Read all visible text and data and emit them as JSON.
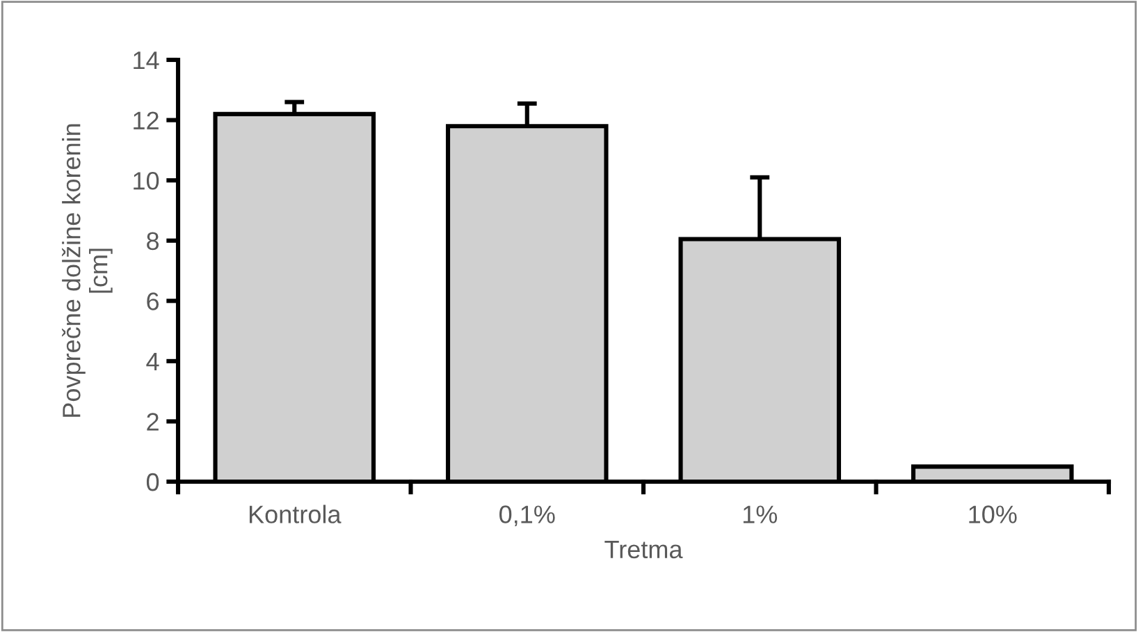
{
  "chart_data": {
    "type": "bar",
    "xlabel": "Tretma",
    "ylabel": "Povprečne dolžine korenin\n[cm]",
    "categories": [
      "Kontrola",
      "0,1%",
      "1%",
      "10%"
    ],
    "values": [
      12.2,
      11.8,
      8.05,
      0.5
    ],
    "errors": [
      0.4,
      0.75,
      2.05,
      null
    ],
    "color": "#d0d0d0",
    "ylim": [
      0,
      14
    ],
    "yticks": [
      0,
      2,
      4,
      6,
      8,
      10,
      12,
      14
    ],
    "grid": false,
    "legend": false
  }
}
